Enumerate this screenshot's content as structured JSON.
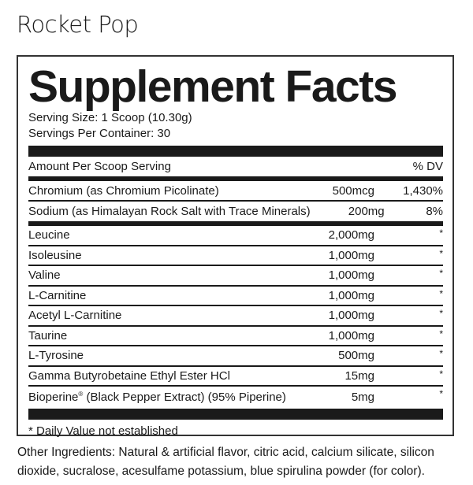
{
  "flavor": "Rocket Pop",
  "title": "Supplement Facts",
  "serving_size": "Serving Size: 1 Scoop (10.30g)",
  "servings_per_container": "Servings Per Container: 30",
  "header": {
    "label": "Amount Per Scoop Serving",
    "dv": "% DV"
  },
  "minerals": [
    {
      "name": "Chromium (as Chromium Picolinate)",
      "amount": "500mcg",
      "dv": "1,430%"
    },
    {
      "name": "Sodium (as Himalayan Rock Salt with Trace Minerals)",
      "amount": "200mg",
      "dv": "8%"
    }
  ],
  "ingredients": [
    {
      "name": "Leucine",
      "amount": "2,000mg",
      "dv": "*"
    },
    {
      "name": "Isoleusine",
      "amount": "1,000mg",
      "dv": "*"
    },
    {
      "name": "Valine",
      "amount": "1,000mg",
      "dv": "*"
    },
    {
      "name": "L-Carnitine",
      "amount": "1,000mg",
      "dv": "*"
    },
    {
      "name": "Acetyl L-Carnitine",
      "amount": "1,000mg",
      "dv": "*"
    },
    {
      "name": "Taurine",
      "amount": "1,000mg",
      "dv": "*"
    },
    {
      "name": "L-Tyrosine",
      "amount": "500mg",
      "dv": "*"
    },
    {
      "name": "Gamma Butyrobetaine Ethyl Ester HCl",
      "amount": "15mg",
      "dv": "*"
    }
  ],
  "bioperine": {
    "name": "Bioperine",
    "reg": "®",
    "rest": " (Black Pepper Extract) (95% Piperine)",
    "amount": "5mg",
    "dv": "*"
  },
  "footnote": "* Daily Value not established",
  "other_ingredients": "Other Ingredients: Natural & artificial flavor, citric acid, calcium silicate, silicon dioxide, sucralose, acesulfame potassium, blue spirulina powder (for color)."
}
